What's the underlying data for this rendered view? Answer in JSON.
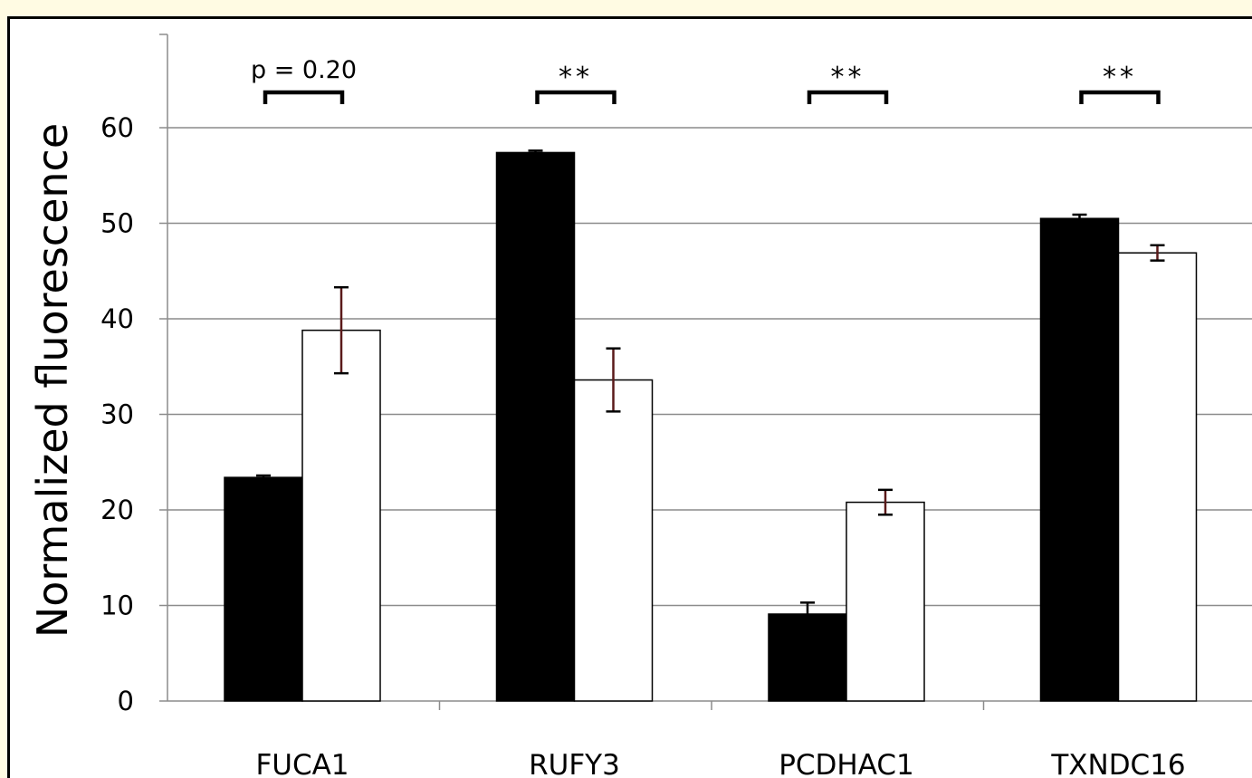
{
  "chart_data": {
    "type": "bar",
    "ylabel": "Normalized fluorescence",
    "xlabel": "",
    "ylim": [
      0,
      60
    ],
    "yticks": [
      0,
      10,
      20,
      30,
      40,
      50,
      60
    ],
    "grid": true,
    "legend": "none",
    "categories": [
      "FUCA1",
      "RUFY3",
      "PCDHAC1",
      "TXNDC16"
    ],
    "series": [
      {
        "fill": "#000000",
        "values": [
          23.4,
          57.4,
          9.1,
          50.5
        ],
        "errors": [
          0.2,
          0.2,
          1.2,
          0.4
        ]
      },
      {
        "fill": "#ffffff",
        "values": [
          38.8,
          33.6,
          20.8,
          46.9
        ],
        "errors": [
          4.5,
          3.3,
          1.3,
          0.8
        ]
      }
    ],
    "significance": [
      "p = 0.20",
      "**",
      "**",
      "**"
    ]
  },
  "colors": {
    "bar_dark": "#000000",
    "bar_light": "#ffffff",
    "grid": "#8c8c8c",
    "background": "#fffbe3",
    "error_bar_light": "#5a1a1a"
  }
}
